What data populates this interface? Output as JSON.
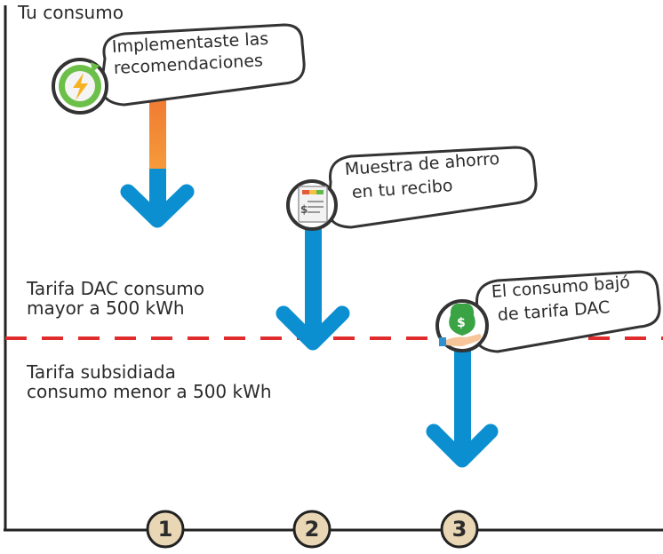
{
  "y_axis_title": "Tu consumo",
  "zones": {
    "upper": [
      "Tarifa DAC consumo",
      "mayor a 500 kWh"
    ],
    "lower": [
      "Tarifa subsidiada",
      "consumo menor a 500 kWh"
    ]
  },
  "steps": [
    {
      "number": "1",
      "bubble": [
        "Implementaste las",
        "recomendaciones"
      ],
      "icon": "energy-bolt-icon"
    },
    {
      "number": "2",
      "bubble": [
        "Muestra de ahorro",
        "en tu recibo"
      ],
      "icon": "bill-receipt-icon"
    },
    {
      "number": "3",
      "bubble": [
        "El consumo bajó",
        "de tarifa DAC"
      ],
      "icon": "money-bag-hand-icon"
    }
  ],
  "colors": {
    "axis": "#222222",
    "threshold_line": "#e02c2c",
    "arrow": "#0b8fd0",
    "level_start": "#e53a2a",
    "level_mid": "#f6a33a",
    "level_low": "#e9ef50",
    "level_end": "#5cc23d",
    "step_circle": "#e8d6b4"
  }
}
